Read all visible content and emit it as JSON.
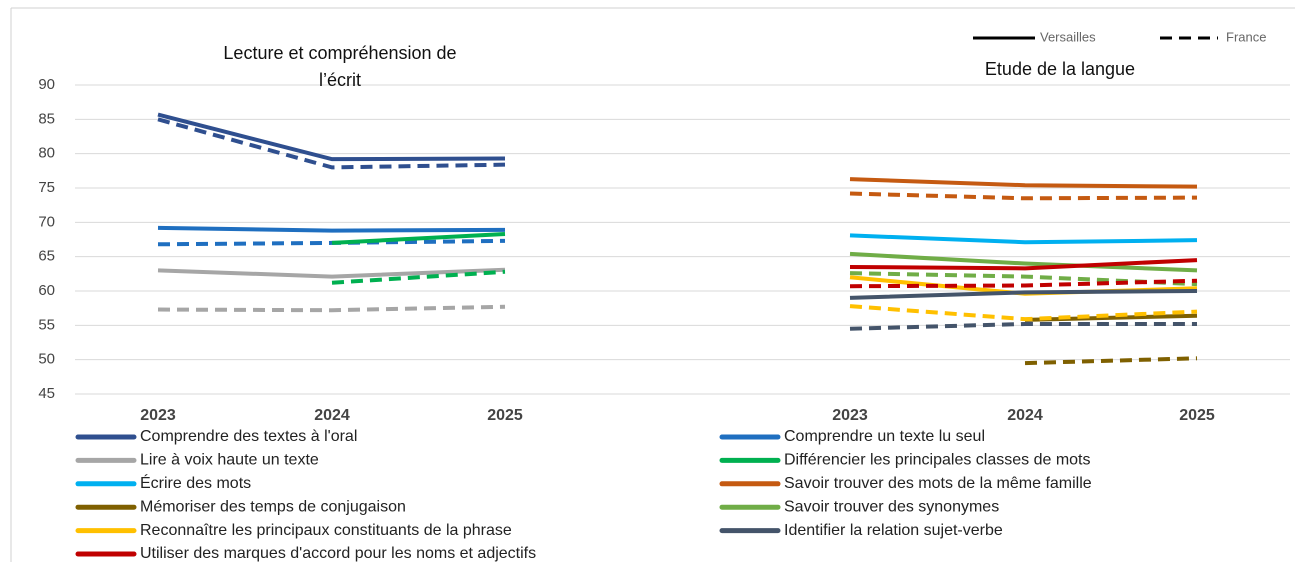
{
  "chart_data": {
    "type": "line",
    "ylim": [
      45,
      90
    ],
    "yticks": [
      45,
      50,
      55,
      60,
      65,
      70,
      75,
      80,
      85,
      90
    ],
    "grid": true,
    "line_styles": {
      "solid": "Versailles",
      "dashed": "France"
    },
    "panels": [
      {
        "title": "Lecture et compréhension de l’écrit",
        "categories": [
          "2023",
          "2024",
          "2025"
        ]
      },
      {
        "title": "Etude de la langue",
        "categories": [
          "2023",
          "2024",
          "2025"
        ]
      }
    ],
    "series": [
      {
        "name": "Comprendre des textes à l'oral",
        "color": "#2f4f8f",
        "panel": 0,
        "values": [
          85.7,
          79.2,
          79.3
        ],
        "france": [
          85,
          78,
          78.4
        ]
      },
      {
        "name": "Comprendre un texte lu seul",
        "color": "#1f6fc0",
        "panel": 0,
        "values": [
          69.2,
          68.8,
          68.9
        ],
        "france": [
          66.8,
          67,
          67.3
        ]
      },
      {
        "name": "Lire à voix haute un texte",
        "color": "#a6a6a6",
        "panel": 0,
        "values": [
          63,
          62.1,
          63.1
        ],
        "france": [
          57.3,
          57.2,
          57.7
        ]
      },
      {
        "name": "Différencier les principales classes de mots",
        "color": "#00b050",
        "panel": 0,
        "values": [
          null,
          67,
          68.3
        ],
        "france": [
          null,
          61.2,
          62.8
        ]
      },
      {
        "name": "Écrire des mots",
        "color": "#00b0f0",
        "panel": 1,
        "values": [
          68.1,
          67.1,
          67.4
        ],
        "france": [
          null,
          null,
          null
        ]
      },
      {
        "name": "Savoir trouver des mots de la même famille",
        "color": "#c55a11",
        "panel": 1,
        "values": [
          76.3,
          75.4,
          75.2
        ],
        "france": [
          74.2,
          73.5,
          73.6
        ]
      },
      {
        "name": "Mémoriser des temps de conjugaison",
        "color": "#7f6000",
        "panel": 1,
        "values": [
          null,
          55.8,
          56.4
        ],
        "france": [
          null,
          49.5,
          50.2
        ]
      },
      {
        "name": "Savoir trouver des synonymes",
        "color": "#70ad47",
        "panel": 1,
        "values": [
          65.4,
          64,
          63
        ],
        "france": [
          62.6,
          62.1,
          61
        ]
      },
      {
        "name": "Reconnaître les principaux constituants de la phrase",
        "color": "#ffc000",
        "panel": 1,
        "values": [
          62,
          59.6,
          60.4
        ],
        "france": [
          57.8,
          55.9,
          57
        ]
      },
      {
        "name": "Identifier la relation sujet-verbe",
        "color": "#44546a",
        "panel": 1,
        "values": [
          59,
          59.8,
          60
        ],
        "france": [
          54.5,
          55.2,
          55.2
        ]
      },
      {
        "name": "Utiliser des marques d'accord pour les noms et adjectifs",
        "color": "#c00000",
        "panel": 1,
        "values": [
          63.5,
          63.3,
          64.5
        ],
        "france": [
          60.7,
          60.8,
          61.5
        ]
      }
    ]
  }
}
